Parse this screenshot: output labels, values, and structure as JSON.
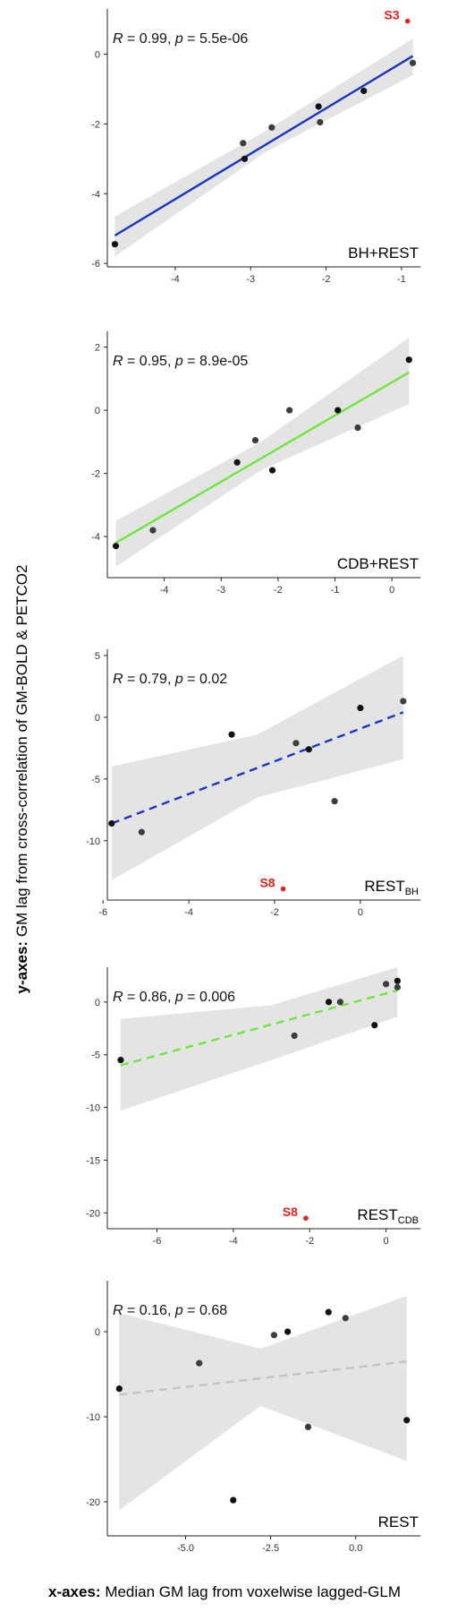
{
  "outer": {
    "ylabel_bold": "y-axes:",
    "ylabel_rest": " GM lag from cross-correlation of GM-BOLD & PETCO2",
    "xlabel_bold": "x-axes:",
    "xlabel_rest": " Median GM lag from voxelwise lagged-GLM"
  },
  "chart_data": [
    {
      "type": "scatter",
      "condition": "BH+REST",
      "condition_main": "BH+REST",
      "condition_sub": "",
      "R": "0.99",
      "p": "5.5e-06",
      "xlim": [
        -4.9,
        -0.75
      ],
      "ylim": [
        -6.1,
        1.3
      ],
      "xticks": [
        -4,
        -3,
        -2,
        -1
      ],
      "xtick_labels": [
        "-4",
        "-3",
        "-2",
        "-1"
      ],
      "yticks": [
        -6,
        -4,
        -2,
        0
      ],
      "ytick_labels": [
        "-6",
        "-4",
        "-2",
        "0"
      ],
      "fit": {
        "x0": -4.8,
        "y0": -5.2,
        "x1": -0.85,
        "y1": -0.05,
        "color": "#1836c8",
        "dashed": false
      },
      "band": {
        "top": [
          [
            -4.8,
            -4.65
          ],
          [
            -2.8,
            -2.2
          ],
          [
            -0.85,
            0.45
          ]
        ],
        "bottom": [
          [
            -4.8,
            -5.8
          ],
          [
            -2.8,
            -2.8
          ],
          [
            -0.85,
            -0.6
          ]
        ]
      },
      "points": [
        [
          -4.8,
          -5.45
        ],
        [
          -3.1,
          -2.55
        ],
        [
          -3.08,
          -3.0
        ],
        [
          -2.72,
          -2.1
        ],
        [
          -2.1,
          -1.5
        ],
        [
          -2.08,
          -1.95
        ],
        [
          -1.5,
          -1.05
        ],
        [
          -0.85,
          -0.25
        ]
      ],
      "outlier": {
        "x": -0.92,
        "y": 0.95,
        "label": "S3"
      }
    },
    {
      "type": "scatter",
      "condition": "CDB+REST",
      "condition_main": "CDB+REST",
      "condition_sub": "",
      "R": "0.95",
      "p": "8.9e-05",
      "xlim": [
        -5.0,
        0.5
      ],
      "ylim": [
        -5.3,
        2.5
      ],
      "xticks": [
        -4,
        -3,
        -2,
        -1,
        0
      ],
      "xtick_labels": [
        "-4",
        "-3",
        "-2",
        "-1",
        "0"
      ],
      "yticks": [
        -4,
        -2,
        0,
        2
      ],
      "ytick_labels": [
        "-4",
        "-2",
        "0",
        "2"
      ],
      "fit": {
        "x0": -4.85,
        "y0": -4.2,
        "x1": 0.3,
        "y1": 1.2,
        "color": "#6ee83b",
        "dashed": false
      },
      "band": {
        "top": [
          [
            -4.85,
            -3.5
          ],
          [
            -2.3,
            -1.0
          ],
          [
            0.3,
            2.3
          ]
        ],
        "bottom": [
          [
            -4.85,
            -4.95
          ],
          [
            -2.3,
            -1.9
          ],
          [
            0.3,
            0.2
          ]
        ]
      },
      "points": [
        [
          -4.85,
          -4.3
        ],
        [
          -4.2,
          -3.8
        ],
        [
          -2.72,
          -1.65
        ],
        [
          -2.4,
          -0.95
        ],
        [
          -2.1,
          -1.9
        ],
        [
          -1.8,
          0.0
        ],
        [
          -0.95,
          0.0
        ],
        [
          -0.6,
          -0.55
        ],
        [
          0.3,
          1.6
        ]
      ],
      "outlier": null
    },
    {
      "type": "scatter",
      "condition": "REST_BH",
      "condition_main": "REST",
      "condition_sub": "BH",
      "R": "0.79",
      "p": "0.02",
      "xlim": [
        -5.9,
        1.4
      ],
      "ylim": [
        -14.8,
        5.5
      ],
      "xticks": [
        -6,
        -4,
        -2,
        0
      ],
      "xtick_labels": [
        "-6",
        "-4",
        "-2",
        "0"
      ],
      "yticks": [
        5,
        0,
        -5,
        -10
      ],
      "ytick_labels": [
        "5",
        "0",
        "-5",
        "-10"
      ],
      "fit": {
        "x0": -5.8,
        "y0": -8.6,
        "x1": 1.0,
        "y1": 0.4,
        "color": "#1836c8",
        "dashed": true
      },
      "band": {
        "top": [
          [
            -5.8,
            -4.0
          ],
          [
            -2.4,
            -1.4
          ],
          [
            1.0,
            5.0
          ]
        ],
        "bottom": [
          [
            -5.8,
            -13.2
          ],
          [
            -2.4,
            -6.5
          ],
          [
            1.0,
            -3.4
          ]
        ]
      },
      "points": [
        [
          -5.8,
          -8.6
        ],
        [
          -5.1,
          -9.3
        ],
        [
          -3.0,
          -1.4
        ],
        [
          -1.5,
          -2.1
        ],
        [
          -1.2,
          -2.6
        ],
        [
          -0.6,
          -6.8
        ],
        [
          0.0,
          0.75
        ],
        [
          1.0,
          1.3
        ]
      ],
      "outlier": {
        "x": -1.8,
        "y": -13.9,
        "label": "S8"
      }
    },
    {
      "type": "scatter",
      "condition": "REST_CDB",
      "condition_main": "REST",
      "condition_sub": "CDB",
      "R": "0.86",
      "p": "0.006",
      "xlim": [
        -7.3,
        0.9
      ],
      "ylim": [
        -21.5,
        3.3
      ],
      "xticks": [
        -6,
        -4,
        -2,
        0
      ],
      "xtick_labels": [
        "-6",
        "-4",
        "-2",
        "0"
      ],
      "yticks": [
        0,
        -5,
        -10,
        -15,
        -20
      ],
      "ytick_labels": [
        "0",
        "-5",
        "-10",
        "-15",
        "-20"
      ],
      "fit": {
        "x0": -6.95,
        "y0": -6.0,
        "x1": 0.3,
        "y1": 1.1,
        "color": "#6ee83b",
        "dashed": true
      },
      "band": {
        "top": [
          [
            -6.95,
            -1.6
          ],
          [
            -3.0,
            -0.3
          ],
          [
            0.3,
            3.3
          ]
        ],
        "bottom": [
          [
            -6.95,
            -10.3
          ],
          [
            -3.0,
            -5.5
          ],
          [
            0.3,
            -1.4
          ]
        ]
      },
      "points": [
        [
          -6.95,
          -5.5
        ],
        [
          -2.4,
          -3.2
        ],
        [
          -1.5,
          0.0
        ],
        [
          -1.2,
          0.0
        ],
        [
          -0.3,
          -2.2
        ],
        [
          0.0,
          1.7
        ],
        [
          0.3,
          2.0
        ],
        [
          0.3,
          1.4
        ]
      ],
      "outlier": {
        "x": -2.1,
        "y": -20.5,
        "label": "S8"
      }
    },
    {
      "type": "scatter",
      "condition": "REST",
      "condition_main": "REST",
      "condition_sub": "",
      "R": "0.16",
      "p": "0.68",
      "xlim": [
        -7.3,
        1.9
      ],
      "ylim": [
        -24.0,
        6.0
      ],
      "xticks": [
        -5,
        -2.5,
        0
      ],
      "xtick_labels": [
        "-5.0",
        "-2.5",
        "0.0"
      ],
      "yticks": [
        0,
        -10,
        -20
      ],
      "ytick_labels": [
        "0",
        "-10",
        "-20"
      ],
      "fit": {
        "x0": -6.95,
        "y0": -7.4,
        "x1": 1.5,
        "y1": -3.5,
        "color": "#c4c4c4",
        "dashed": true
      },
      "band": {
        "top": [
          [
            -6.95,
            2.2
          ],
          [
            -2.8,
            -2.0
          ],
          [
            1.5,
            4.2
          ]
        ],
        "bottom": [
          [
            -6.95,
            -21.0
          ],
          [
            -2.8,
            -8.7
          ],
          [
            1.5,
            -15.2
          ]
        ]
      },
      "points": [
        [
          -6.95,
          -6.7
        ],
        [
          -4.6,
          -3.7
        ],
        [
          -3.6,
          -19.8
        ],
        [
          -2.4,
          -0.4
        ],
        [
          -2.0,
          0.0
        ],
        [
          -1.4,
          -11.2
        ],
        [
          -0.8,
          2.3
        ],
        [
          -0.3,
          1.6
        ],
        [
          1.5,
          -10.4
        ]
      ],
      "outlier": null
    }
  ]
}
